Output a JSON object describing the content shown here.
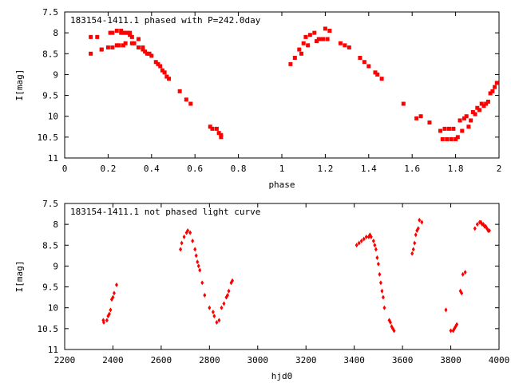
{
  "chart_data": [
    {
      "type": "scatter",
      "title": "183154-1411.1 phased with P=242.0day",
      "xlabel": "phase",
      "ylabel": "I[mag]",
      "xlim": [
        0,
        2
      ],
      "ylim": [
        7.5,
        11
      ],
      "y_inverted": true,
      "xticks": [
        "0",
        "0.2",
        "0.4",
        "0.6",
        "0.8",
        "1",
        "1.2",
        "1.4",
        "1.6",
        "1.8",
        "2"
      ],
      "yticks": [
        "7.5",
        "8",
        "8.5",
        "9",
        "9.5",
        "10",
        "10.5",
        "11"
      ],
      "grid": false,
      "marker": "square",
      "color": "#ff0000",
      "series": [
        {
          "x": [
            0.12,
            0.12,
            0.15,
            0.17,
            0.17,
            0.2,
            0.21,
            0.22,
            0.22,
            0.24,
            0.24,
            0.25,
            0.26,
            0.26,
            0.27,
            0.27,
            0.28,
            0.28,
            0.29,
            0.3,
            0.3,
            0.31,
            0.31,
            0.32,
            0.34,
            0.34,
            0.36,
            0.36,
            0.37,
            0.38,
            0.39,
            0.4,
            0.42,
            0.43,
            0.44,
            0.45,
            0.46,
            0.47,
            0.48,
            0.53,
            0.56,
            0.58,
            0.67,
            0.68,
            0.7,
            0.71,
            0.72,
            0.72,
            1.04,
            1.06,
            1.08,
            1.09,
            1.1,
            1.11,
            1.12,
            1.13,
            1.15,
            1.16,
            1.17,
            1.18,
            1.19,
            1.2,
            1.21,
            1.22,
            1.27,
            1.29,
            1.31,
            1.36,
            1.38,
            1.4,
            1.43,
            1.44,
            1.46,
            1.56,
            1.62,
            1.64,
            1.68,
            1.73,
            1.74,
            1.75,
            1.76,
            1.77,
            1.78,
            1.79,
            1.8,
            1.81,
            1.82,
            1.83,
            1.84,
            1.85,
            1.86,
            1.87,
            1.88,
            1.89,
            1.9,
            1.91,
            1.92,
            1.93,
            1.94,
            1.95,
            1.96,
            1.97,
            1.98,
            1.99
          ],
          "y": [
            8.5,
            8.1,
            8.1,
            8.4,
            8.4,
            8.35,
            8.0,
            8.35,
            8.0,
            8.3,
            7.95,
            8.3,
            8.0,
            7.95,
            8.3,
            8.0,
            8.0,
            8.25,
            8.0,
            8.0,
            8.05,
            8.25,
            8.1,
            8.25,
            8.35,
            8.15,
            8.35,
            8.4,
            8.45,
            8.5,
            8.5,
            8.55,
            8.7,
            8.75,
            8.8,
            8.9,
            8.95,
            9.05,
            9.1,
            9.4,
            9.6,
            9.7,
            10.25,
            10.3,
            10.3,
            10.4,
            10.45,
            10.5,
            8.75,
            8.6,
            8.4,
            8.5,
            8.25,
            8.1,
            8.3,
            8.05,
            8.0,
            8.2,
            8.15,
            8.15,
            8.15,
            7.9,
            8.15,
            7.95,
            8.25,
            8.3,
            8.35,
            8.6,
            8.7,
            8.8,
            8.95,
            9.0,
            9.1,
            9.7,
            10.05,
            10.0,
            10.15,
            10.35,
            10.55,
            10.3,
            10.55,
            10.3,
            10.55,
            10.3,
            10.55,
            10.5,
            10.1,
            10.35,
            10.05,
            10.0,
            10.25,
            10.1,
            9.9,
            9.95,
            9.8,
            9.85,
            9.7,
            9.75,
            9.7,
            9.65,
            9.45,
            9.4,
            9.3,
            9.2
          ]
        }
      ]
    },
    {
      "type": "scatter",
      "title": "183154-1411.1 not phased light curve",
      "xlabel": "hjd0",
      "ylabel": "I[mag]",
      "xlim": [
        2200,
        4000
      ],
      "ylim": [
        7.5,
        11
      ],
      "y_inverted": true,
      "xticks": [
        "2200",
        "2400",
        "2600",
        "2800",
        "3000",
        "3200",
        "3400",
        "3600",
        "3800",
        "4000"
      ],
      "yticks": [
        "7.5",
        "8",
        "8.5",
        "9",
        "9.5",
        "10",
        "10.5",
        "11"
      ],
      "grid": false,
      "marker": "diamond",
      "color": "#ff0000",
      "series": [
        {
          "x": [
            2360,
            2362,
            2375,
            2380,
            2385,
            2390,
            2395,
            2400,
            2405,
            2415,
            2680,
            2685,
            2695,
            2705,
            2710,
            2720,
            2730,
            2740,
            2745,
            2750,
            2755,
            2760,
            2770,
            2780,
            2800,
            2815,
            2820,
            2830,
            2840,
            2850,
            2860,
            2870,
            2875,
            2880,
            2890,
            2895,
            3410,
            3420,
            3430,
            3440,
            3450,
            3460,
            3465,
            3470,
            3480,
            3485,
            3490,
            3495,
            3500,
            3505,
            3510,
            3515,
            3520,
            3525,
            3545,
            3550,
            3555,
            3560,
            3565,
            3640,
            3645,
            3650,
            3655,
            3660,
            3665,
            3670,
            3680,
            3780,
            3800,
            3810,
            3815,
            3820,
            3825,
            3840,
            3845,
            3850,
            3860,
            3900,
            3910,
            3920,
            3925,
            3930,
            3935,
            3940,
            3945,
            3950,
            3955,
            3960
          ],
          "y": [
            10.3,
            10.35,
            10.3,
            10.2,
            10.15,
            10.05,
            9.8,
            9.75,
            9.65,
            9.45,
            8.6,
            8.45,
            8.3,
            8.2,
            8.15,
            8.2,
            8.4,
            8.6,
            8.75,
            8.9,
            9.0,
            9.1,
            9.4,
            9.7,
            10.0,
            10.1,
            10.2,
            10.35,
            10.3,
            10.0,
            9.9,
            9.75,
            9.7,
            9.6,
            9.4,
            9.35,
            8.5,
            8.45,
            8.4,
            8.35,
            8.3,
            8.3,
            8.25,
            8.3,
            8.4,
            8.5,
            8.6,
            8.8,
            8.95,
            9.2,
            9.4,
            9.6,
            9.75,
            10.0,
            10.3,
            10.35,
            10.45,
            10.5,
            10.55,
            8.7,
            8.6,
            8.45,
            8.25,
            8.15,
            8.1,
            7.9,
            7.95,
            10.05,
            10.55,
            10.55,
            10.5,
            10.45,
            10.4,
            9.6,
            9.65,
            9.2,
            9.15,
            8.1,
            8.0,
            7.95,
            7.95,
            8.0,
            8.0,
            8.05,
            8.05,
            8.1,
            8.15,
            8.15
          ]
        }
      ]
    }
  ]
}
